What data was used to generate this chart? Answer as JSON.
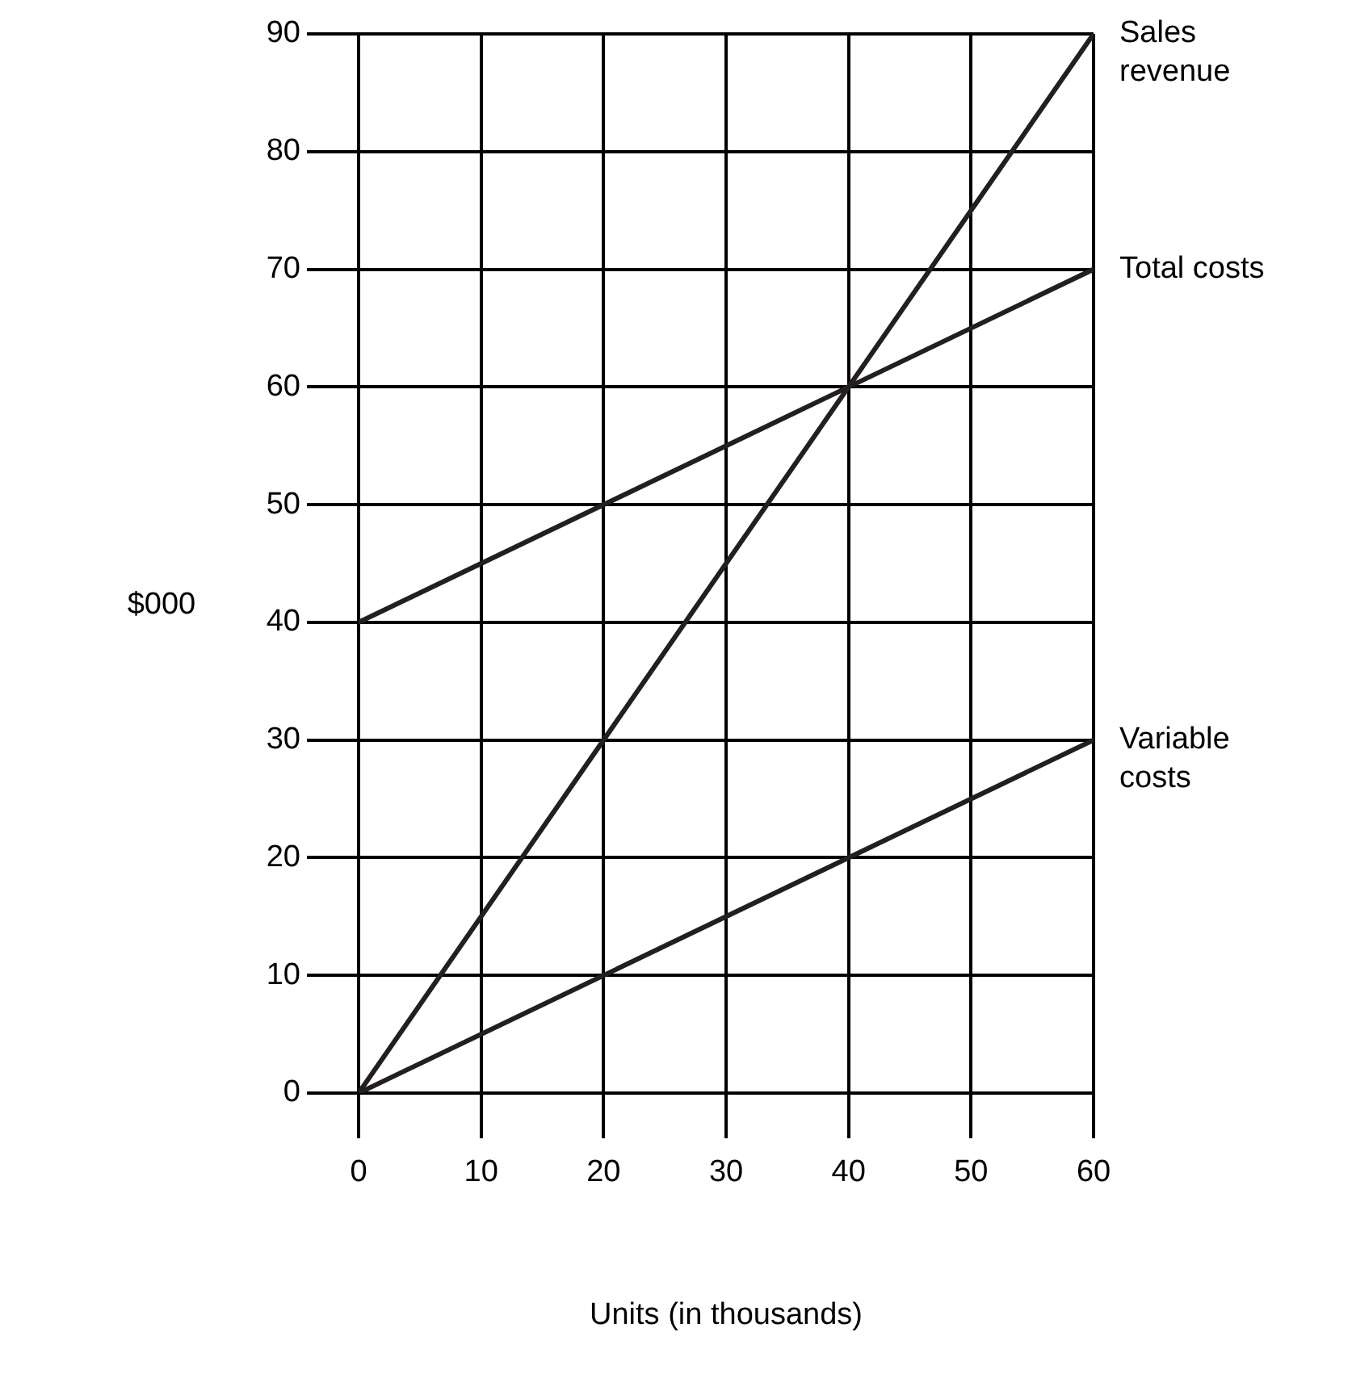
{
  "chart_data": {
    "type": "line",
    "xlabel": "Units (in thousands)",
    "ylabel": "$000",
    "x": [
      0,
      60
    ],
    "series": [
      {
        "name": "Sales revenue",
        "color": "#231f20",
        "values": [
          0,
          90
        ]
      },
      {
        "name": "Total costs",
        "color": "#231f20",
        "values": [
          40,
          70
        ]
      },
      {
        "name": "Variable costs",
        "color": "#231f20",
        "values": [
          0,
          30
        ]
      }
    ],
    "xlim": [
      0,
      60
    ],
    "xticks": [
      0,
      10,
      20,
      30,
      40,
      50,
      60
    ],
    "ylim": [
      0,
      90
    ],
    "yticks": [
      0,
      10,
      20,
      30,
      40,
      50,
      60,
      70,
      80,
      90
    ],
    "grid": true,
    "legend": false,
    "marker": "none",
    "line_style": "solid"
  }
}
